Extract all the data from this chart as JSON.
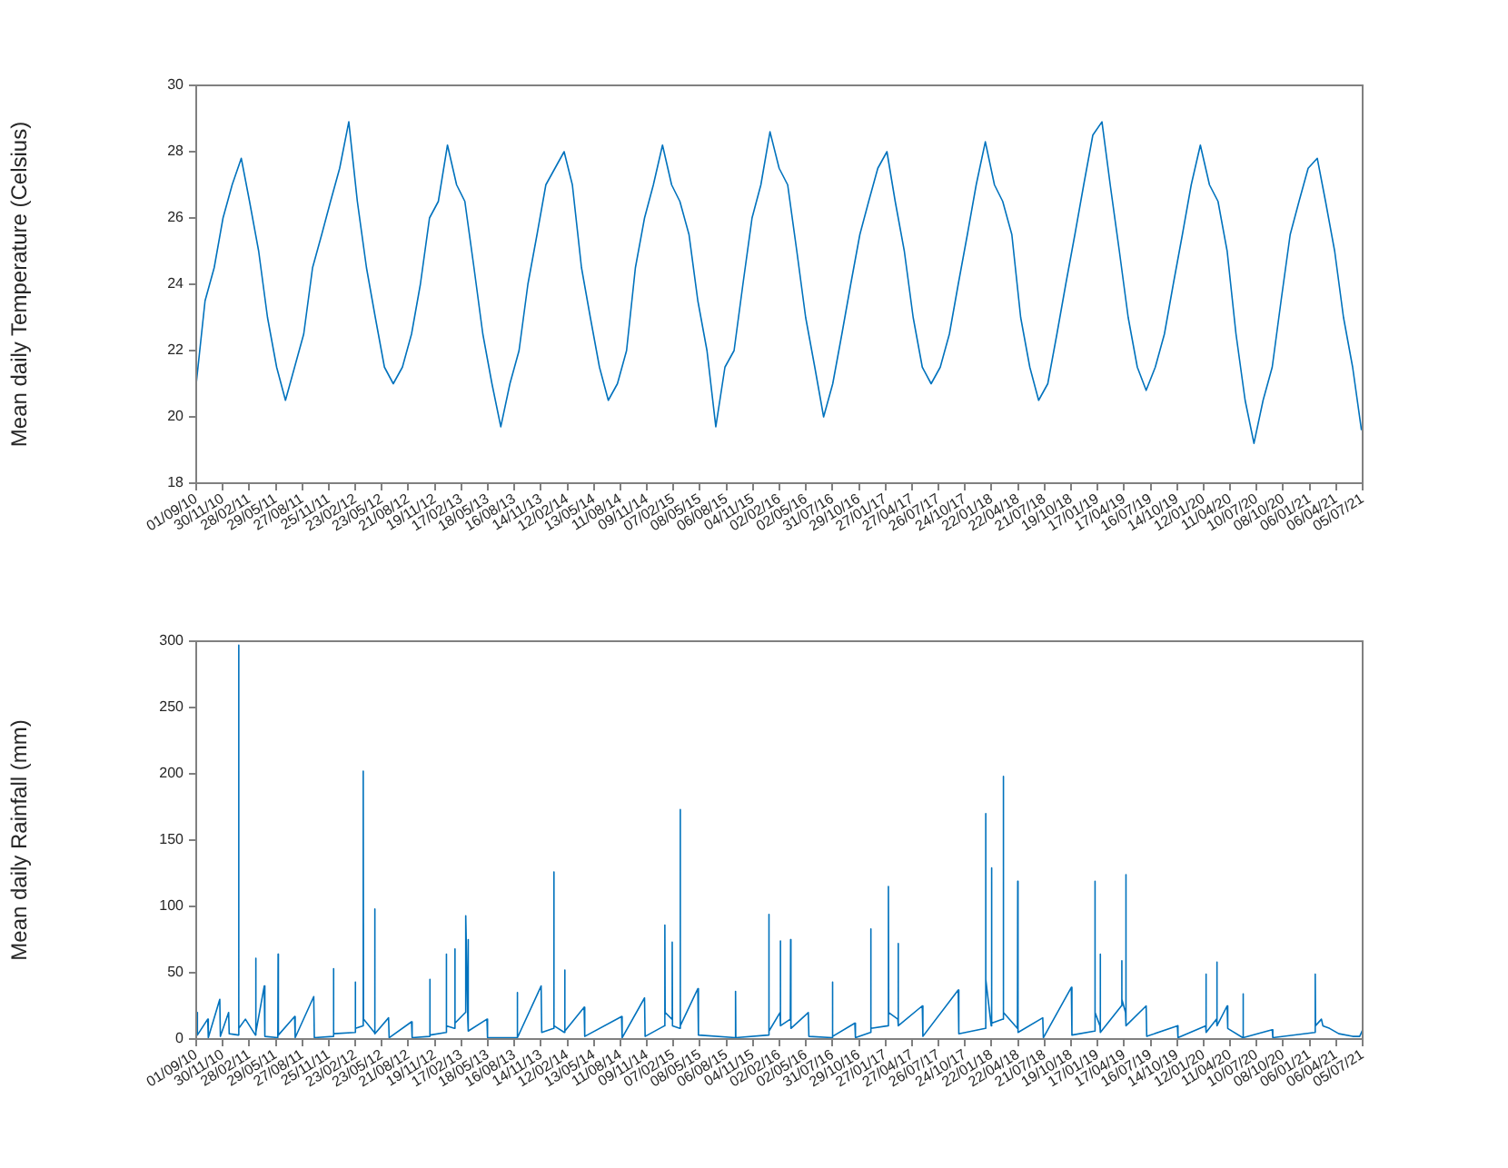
{
  "chart_data": [
    {
      "type": "line",
      "ylabel": "Mean daily Temperature (Celsius)",
      "xlim": [
        "2010-09-01",
        "2021-07-05"
      ],
      "ylim": [
        18,
        30
      ],
      "yticks": [
        18,
        20,
        22,
        24,
        26,
        28,
        30
      ],
      "xticks": [
        {
          "value": "2010-09-01",
          "label": "01/09/10"
        },
        {
          "value": "2010-11-30",
          "label": "30/11/10"
        },
        {
          "value": "2011-02-28",
          "label": "28/02/11"
        },
        {
          "value": "2011-05-29",
          "label": "29/05/11"
        },
        {
          "value": "2011-08-27",
          "label": "27/08/11"
        },
        {
          "value": "2011-11-25",
          "label": "25/11/11"
        },
        {
          "value": "2012-02-23",
          "label": "23/02/12"
        },
        {
          "value": "2012-05-23",
          "label": "23/05/12"
        },
        {
          "value": "2012-08-21",
          "label": "21/08/12"
        },
        {
          "value": "2012-11-19",
          "label": "19/11/12"
        },
        {
          "value": "2013-02-17",
          "label": "17/02/13"
        },
        {
          "value": "2013-05-18",
          "label": "18/05/13"
        },
        {
          "value": "2013-08-16",
          "label": "16/08/13"
        },
        {
          "value": "2013-11-14",
          "label": "14/11/13"
        },
        {
          "value": "2014-02-12",
          "label": "12/02/14"
        },
        {
          "value": "2014-05-13",
          "label": "13/05/14"
        },
        {
          "value": "2014-08-11",
          "label": "11/08/14"
        },
        {
          "value": "2014-11-09",
          "label": "09/11/14"
        },
        {
          "value": "2015-02-07",
          "label": "07/02/15"
        },
        {
          "value": "2015-05-08",
          "label": "08/05/15"
        },
        {
          "value": "2015-08-06",
          "label": "06/08/15"
        },
        {
          "value": "2015-11-04",
          "label": "04/11/15"
        },
        {
          "value": "2016-02-02",
          "label": "02/02/16"
        },
        {
          "value": "2016-05-02",
          "label": "02/05/16"
        },
        {
          "value": "2016-07-31",
          "label": "31/07/16"
        },
        {
          "value": "2016-10-29",
          "label": "29/10/16"
        },
        {
          "value": "2017-01-27",
          "label": "27/01/17"
        },
        {
          "value": "2017-04-27",
          "label": "27/04/17"
        },
        {
          "value": "2017-07-26",
          "label": "26/07/17"
        },
        {
          "value": "2017-10-24",
          "label": "24/10/17"
        },
        {
          "value": "2018-01-22",
          "label": "22/01/18"
        },
        {
          "value": "2018-04-22",
          "label": "22/04/18"
        },
        {
          "value": "2018-07-21",
          "label": "21/07/18"
        },
        {
          "value": "2018-10-19",
          "label": "19/10/18"
        },
        {
          "value": "2019-01-17",
          "label": "17/01/19"
        },
        {
          "value": "2019-04-17",
          "label": "17/04/19"
        },
        {
          "value": "2019-07-16",
          "label": "16/07/19"
        },
        {
          "value": "2019-10-14",
          "label": "14/10/19"
        },
        {
          "value": "2020-01-12",
          "label": "12/01/20"
        },
        {
          "value": "2020-04-11",
          "label": "11/04/20"
        },
        {
          "value": "2020-07-10",
          "label": "10/07/20"
        },
        {
          "value": "2020-10-08",
          "label": "08/10/20"
        },
        {
          "value": "2021-01-06",
          "label": "06/01/21"
        },
        {
          "value": "2021-04-06",
          "label": "06/04/21"
        },
        {
          "value": "2021-07-05",
          "label": "05/07/21"
        }
      ],
      "x": [
        "2010-09",
        "2010-10",
        "2010-11",
        "2010-12",
        "2011-01",
        "2011-02",
        "2011-03",
        "2011-04",
        "2011-05",
        "2011-06",
        "2011-07",
        "2011-08",
        "2011-09",
        "2011-10",
        "2011-11",
        "2011-12",
        "2012-01",
        "2012-02",
        "2012-03",
        "2012-04",
        "2012-05",
        "2012-06",
        "2012-07",
        "2012-08",
        "2012-09",
        "2012-10",
        "2012-11",
        "2012-12",
        "2013-01",
        "2013-02",
        "2013-03",
        "2013-04",
        "2013-05",
        "2013-06",
        "2013-07",
        "2013-08",
        "2013-09",
        "2013-10",
        "2013-11",
        "2013-12",
        "2014-01",
        "2014-02",
        "2014-03",
        "2014-04",
        "2014-05",
        "2014-06",
        "2014-07",
        "2014-08",
        "2014-09",
        "2014-10",
        "2014-11",
        "2014-12",
        "2015-01",
        "2015-02",
        "2015-03",
        "2015-04",
        "2015-05",
        "2015-06",
        "2015-07",
        "2015-08",
        "2015-09",
        "2015-10",
        "2015-11",
        "2015-12",
        "2016-01",
        "2016-02",
        "2016-03",
        "2016-04",
        "2016-05",
        "2016-06",
        "2016-07",
        "2016-08",
        "2016-09",
        "2016-10",
        "2016-11",
        "2016-12",
        "2017-01",
        "2017-02",
        "2017-03",
        "2017-04",
        "2017-05",
        "2017-06",
        "2017-07",
        "2017-08",
        "2017-09",
        "2017-10",
        "2017-11",
        "2017-12",
        "2018-01",
        "2018-02",
        "2018-03",
        "2018-04",
        "2018-05",
        "2018-06",
        "2018-07",
        "2018-08",
        "2018-09",
        "2018-10",
        "2018-11",
        "2018-12",
        "2019-01",
        "2019-02",
        "2019-03",
        "2019-04",
        "2019-05",
        "2019-06",
        "2019-07",
        "2019-08",
        "2019-09",
        "2019-10",
        "2019-11",
        "2019-12",
        "2020-01",
        "2020-02",
        "2020-03",
        "2020-04",
        "2020-05",
        "2020-06",
        "2020-07",
        "2020-08",
        "2020-09",
        "2020-10",
        "2020-11",
        "2020-12",
        "2021-01",
        "2021-02",
        "2021-03",
        "2021-04",
        "2021-05",
        "2021-06",
        "2021-07"
      ],
      "series": [
        {
          "color": "#0072bd",
          "values": [
            21.0,
            23.5,
            24.5,
            26.0,
            27.0,
            27.8,
            26.5,
            25.0,
            23.0,
            21.5,
            20.5,
            21.5,
            22.5,
            24.5,
            25.5,
            26.5,
            27.5,
            28.9,
            26.5,
            24.5,
            23.0,
            21.5,
            21.0,
            21.5,
            22.5,
            24.0,
            26.0,
            26.5,
            28.2,
            27.0,
            26.5,
            24.5,
            22.5,
            21.0,
            19.7,
            21.0,
            22.0,
            24.0,
            25.5,
            27.0,
            27.5,
            28.0,
            27.0,
            24.5,
            23.0,
            21.5,
            20.5,
            21.0,
            22.0,
            24.5,
            26.0,
            27.0,
            28.2,
            27.0,
            26.5,
            25.5,
            23.5,
            22.0,
            19.7,
            21.5,
            22.0,
            24.0,
            26.0,
            27.0,
            28.6,
            27.5,
            27.0,
            25.0,
            23.0,
            21.5,
            20.0,
            21.0,
            22.5,
            24.0,
            25.5,
            26.5,
            27.5,
            28.0,
            26.5,
            25.0,
            23.0,
            21.5,
            21.0,
            21.5,
            22.5,
            24.0,
            25.5,
            27.0,
            28.3,
            27.0,
            26.5,
            25.5,
            23.0,
            21.5,
            20.5,
            21.0,
            22.5,
            24.0,
            25.5,
            27.0,
            28.5,
            28.9,
            27.0,
            25.0,
            23.0,
            21.5,
            20.8,
            21.5,
            22.5,
            24.0,
            25.5,
            27.0,
            28.2,
            27.0,
            26.5,
            25.0,
            22.5,
            20.5,
            19.2,
            20.5,
            21.5,
            23.5,
            25.5,
            26.5,
            27.5,
            27.8,
            26.5,
            25.0,
            23.0,
            21.5,
            19.6
          ]
        }
      ]
    },
    {
      "type": "line",
      "ylabel": "Mean daily Rainfall (mm)",
      "xlim": [
        "2010-09-01",
        "2021-07-05"
      ],
      "ylim": [
        0,
        300
      ],
      "yticks": [
        0,
        50,
        100,
        150,
        200,
        250,
        300
      ],
      "xticks": [
        {
          "value": "2010-09-01",
          "label": "01/09/10"
        },
        {
          "value": "2010-11-30",
          "label": "30/11/10"
        },
        {
          "value": "2011-02-28",
          "label": "28/02/11"
        },
        {
          "value": "2011-05-29",
          "label": "29/05/11"
        },
        {
          "value": "2011-08-27",
          "label": "27/08/11"
        },
        {
          "value": "2011-11-25",
          "label": "25/11/11"
        },
        {
          "value": "2012-02-23",
          "label": "23/02/12"
        },
        {
          "value": "2012-05-23",
          "label": "23/05/12"
        },
        {
          "value": "2012-08-21",
          "label": "21/08/12"
        },
        {
          "value": "2012-11-19",
          "label": "19/11/12"
        },
        {
          "value": "2013-02-17",
          "label": "17/02/13"
        },
        {
          "value": "2013-05-18",
          "label": "18/05/13"
        },
        {
          "value": "2013-08-16",
          "label": "16/08/13"
        },
        {
          "value": "2013-11-14",
          "label": "14/11/13"
        },
        {
          "value": "2014-02-12",
          "label": "12/02/14"
        },
        {
          "value": "2014-05-13",
          "label": "13/05/14"
        },
        {
          "value": "2014-08-11",
          "label": "11/08/14"
        },
        {
          "value": "2014-11-09",
          "label": "09/11/14"
        },
        {
          "value": "2015-02-07",
          "label": "07/02/15"
        },
        {
          "value": "2015-05-08",
          "label": "08/05/15"
        },
        {
          "value": "2015-08-06",
          "label": "06/08/15"
        },
        {
          "value": "2015-11-04",
          "label": "04/11/15"
        },
        {
          "value": "2016-02-02",
          "label": "02/02/16"
        },
        {
          "value": "2016-05-02",
          "label": "02/05/16"
        },
        {
          "value": "2016-07-31",
          "label": "31/07/16"
        },
        {
          "value": "2016-10-29",
          "label": "29/10/16"
        },
        {
          "value": "2017-01-27",
          "label": "27/01/17"
        },
        {
          "value": "2017-04-27",
          "label": "27/04/17"
        },
        {
          "value": "2017-07-26",
          "label": "26/07/17"
        },
        {
          "value": "2017-10-24",
          "label": "24/10/17"
        },
        {
          "value": "2018-01-22",
          "label": "22/01/18"
        },
        {
          "value": "2018-04-22",
          "label": "22/04/18"
        },
        {
          "value": "2018-07-21",
          "label": "21/07/18"
        },
        {
          "value": "2018-10-19",
          "label": "19/10/18"
        },
        {
          "value": "2019-01-17",
          "label": "17/01/19"
        },
        {
          "value": "2019-04-17",
          "label": "17/04/19"
        },
        {
          "value": "2019-07-16",
          "label": "16/07/19"
        },
        {
          "value": "2019-10-14",
          "label": "14/10/19"
        },
        {
          "value": "2020-01-12",
          "label": "12/01/20"
        },
        {
          "value": "2020-04-11",
          "label": "11/04/20"
        },
        {
          "value": "2020-07-10",
          "label": "10/07/20"
        },
        {
          "value": "2020-10-08",
          "label": "08/10/20"
        },
        {
          "value": "2021-01-06",
          "label": "06/01/21"
        },
        {
          "value": "2021-04-06",
          "label": "06/04/21"
        },
        {
          "value": "2021-07-05",
          "label": "05/07/21"
        }
      ],
      "x": [
        "2010-09-01",
        "2010-09-05",
        "2010-10-10",
        "2010-10-12",
        "2010-11-20",
        "2010-11-22",
        "2010-12-20",
        "2010-12-22",
        "2011-01-22",
        "2011-01-23",
        "2011-01-24",
        "2011-02-15",
        "2011-03-21",
        "2011-03-22",
        "2011-03-23",
        "2011-04-20",
        "2011-04-22",
        "2011-06-05",
        "2011-06-06",
        "2011-06-07",
        "2011-08-01",
        "2011-08-03",
        "2011-10-05",
        "2011-10-07",
        "2011-12-10",
        "2011-12-11",
        "2011-12-12",
        "2012-02-22",
        "2012-02-23",
        "2012-02-24",
        "2012-03-20",
        "2012-03-21",
        "2012-03-22",
        "2012-04-28",
        "2012-04-29",
        "2012-04-30",
        "2012-06-15",
        "2012-06-17",
        "2012-09-01",
        "2012-09-03",
        "2012-11-01",
        "2012-11-02",
        "2012-11-03",
        "2012-12-27",
        "2012-12-28",
        "2012-12-29",
        "2013-01-25",
        "2013-01-26",
        "2013-01-27",
        "2013-03-03",
        "2013-03-04",
        "2013-03-11",
        "2013-03-12",
        "2013-03-13",
        "2013-05-15",
        "2013-05-17",
        "2013-08-25",
        "2013-08-26",
        "2013-08-27",
        "2013-11-15",
        "2013-11-17",
        "2013-12-27",
        "2013-12-28",
        "2013-12-29",
        "2014-02-02",
        "2014-02-03",
        "2014-02-04",
        "2014-04-10",
        "2014-04-12",
        "2014-08-15",
        "2014-08-17",
        "2014-11-01",
        "2014-11-03",
        "2015-01-08",
        "2015-01-09",
        "2015-01-10",
        "2015-02-02",
        "2015-02-03",
        "2015-02-04",
        "2015-03-01",
        "2015-03-02",
        "2015-03-03",
        "2015-05-01",
        "2015-05-03",
        "2015-09-05",
        "2015-09-06",
        "2015-09-07",
        "2015-12-27",
        "2015-12-28",
        "2015-12-29",
        "2016-02-04",
        "2016-02-05",
        "2016-02-06",
        "2016-03-10",
        "2016-03-11",
        "2016-03-12",
        "2016-05-10",
        "2016-05-12",
        "2016-07-30",
        "2016-07-31",
        "2016-08-01",
        "2016-10-15",
        "2016-10-17",
        "2016-12-07",
        "2016-12-08",
        "2016-12-09",
        "2017-02-05",
        "2017-02-06",
        "2017-02-07",
        "2017-03-10",
        "2017-03-11",
        "2017-03-12",
        "2017-06-01",
        "2017-06-03",
        "2017-10-01",
        "2017-10-03",
        "2018-01-01",
        "2018-01-02",
        "2018-01-03",
        "2018-01-21",
        "2018-01-22",
        "2018-01-23",
        "2018-03-02",
        "2018-03-03",
        "2018-03-04",
        "2018-04-20",
        "2018-04-21",
        "2018-04-22",
        "2018-07-15",
        "2018-07-17",
        "2018-10-20",
        "2018-10-22",
        "2019-01-07",
        "2019-01-08",
        "2019-01-09",
        "2019-01-25",
        "2019-01-26",
        "2019-01-27",
        "2019-04-08",
        "2019-04-09",
        "2019-04-10",
        "2019-04-22",
        "2019-04-23",
        "2019-04-24",
        "2019-07-01",
        "2019-07-03",
        "2019-10-15",
        "2019-10-17",
        "2020-01-19",
        "2020-01-20",
        "2020-01-21",
        "2020-02-25",
        "2020-02-26",
        "2020-02-27",
        "2020-04-01",
        "2020-04-03",
        "2020-05-24",
        "2020-05-25",
        "2020-05-26",
        "2020-09-01",
        "2020-09-03",
        "2021-01-24",
        "2021-01-25",
        "2021-01-26",
        "2021-02-15",
        "2021-02-20",
        "2021-03-15",
        "2021-04-15",
        "2021-06-01",
        "2021-06-25",
        "2021-07-05"
      ],
      "series": [
        {
          "color": "#0072bd",
          "values": [
            20,
            3,
            15,
            1,
            30,
            2,
            20,
            4,
            3,
            297,
            8,
            15,
            3,
            61,
            5,
            40,
            2,
            1,
            64,
            3,
            17,
            1,
            32,
            1,
            2,
            53,
            4,
            5,
            43,
            8,
            10,
            202,
            15,
            5,
            98,
            4,
            16,
            1,
            13,
            1,
            2,
            45,
            3,
            5,
            64,
            10,
            8,
            68,
            12,
            20,
            93,
            15,
            75,
            6,
            15,
            1,
            1,
            35,
            1,
            40,
            5,
            8,
            126,
            10,
            5,
            52,
            6,
            24,
            2,
            17,
            1,
            31,
            2,
            10,
            86,
            20,
            15,
            73,
            10,
            8,
            173,
            10,
            38,
            3,
            1,
            36,
            1,
            3,
            94,
            6,
            20,
            74,
            10,
            15,
            75,
            8,
            20,
            2,
            1,
            43,
            2,
            12,
            1,
            5,
            83,
            8,
            10,
            115,
            20,
            15,
            72,
            10,
            25,
            2,
            37,
            4,
            8,
            170,
            45,
            10,
            129,
            12,
            15,
            198,
            20,
            8,
            119,
            5,
            16,
            1,
            39,
            3,
            6,
            119,
            20,
            10,
            64,
            5,
            25,
            59,
            30,
            20,
            124,
            10,
            25,
            2,
            10,
            1,
            10,
            49,
            5,
            15,
            58,
            10,
            25,
            8,
            1,
            34,
            1,
            7,
            1,
            5,
            49,
            10,
            15,
            10,
            8,
            4,
            2,
            2,
            7
          ]
        }
      ]
    }
  ]
}
